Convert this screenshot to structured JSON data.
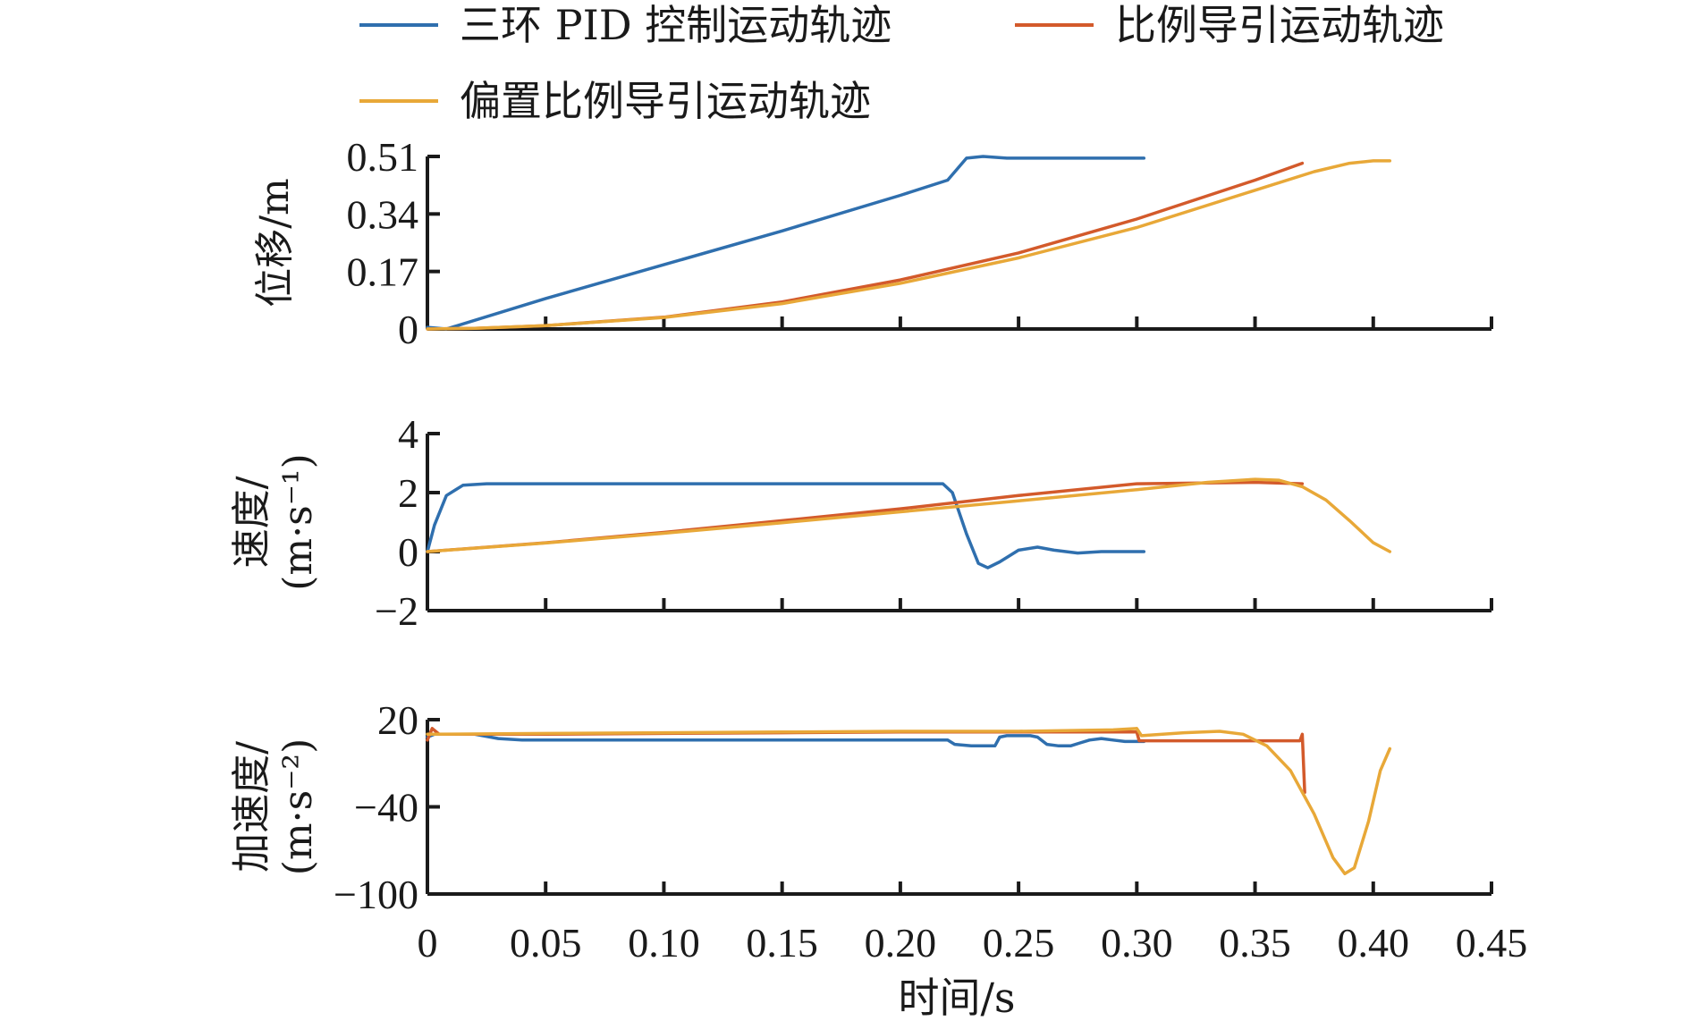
{
  "chart_data": {
    "type": "line",
    "legend": {
      "placement": "top",
      "entries": [
        {
          "name": "三环 PID 控制运动轨迹",
          "color": "#2f6fae"
        },
        {
          "name": "比例导引运动轨迹",
          "color": "#d35a2b"
        },
        {
          "name": "偏置比例导引运动轨迹",
          "color": "#e8a838"
        }
      ]
    },
    "xlabel": "时间/s",
    "xlim": [
      0,
      0.45
    ],
    "xticks": [
      0,
      0.05,
      0.1,
      0.15,
      0.2,
      0.25,
      0.3,
      0.35,
      0.4,
      0.45
    ],
    "xtick_labels": [
      "0",
      "0.05",
      "0.10",
      "0.15",
      "0.20",
      "0.25",
      "0.30",
      "0.35",
      "0.40",
      "0.45"
    ],
    "panels": [
      {
        "ylabel": [
          "位移/m"
        ],
        "ylim": [
          0,
          0.51
        ],
        "yticks": [
          0,
          0.17,
          0.34,
          0.51
        ],
        "ytick_labels": [
          "0",
          "0.17",
          "0.34",
          "0.51"
        ],
        "series": [
          {
            "name": "三环 PID 控制运动轨迹",
            "x": [
              0,
              0.008,
              0.05,
              0.1,
              0.15,
              0.2,
              0.22,
              0.228,
              0.235,
              0.245,
              0.26,
              0.28,
              0.303
            ],
            "y": [
              0.005,
              0,
              0.09,
              0.19,
              0.29,
              0.395,
              0.44,
              0.505,
              0.51,
              0.505,
              0.505,
              0.505,
              0.505
            ]
          },
          {
            "name": "比例导引运动轨迹",
            "x": [
              0,
              0.02,
              0.05,
              0.1,
              0.15,
              0.2,
              0.25,
              0.3,
              0.35,
              0.37
            ],
            "y": [
              0,
              0.002,
              0.01,
              0.035,
              0.08,
              0.145,
              0.225,
              0.325,
              0.44,
              0.49
            ]
          },
          {
            "name": "偏置比例导引运动轨迹",
            "x": [
              0,
              0.02,
              0.05,
              0.1,
              0.15,
              0.2,
              0.25,
              0.3,
              0.35,
              0.375,
              0.39,
              0.4,
              0.407
            ],
            "y": [
              0,
              0.002,
              0.01,
              0.034,
              0.075,
              0.135,
              0.21,
              0.3,
              0.41,
              0.465,
              0.49,
              0.497,
              0.497
            ]
          }
        ]
      },
      {
        "ylabel": [
          "速度/",
          "(m·s⁻¹)"
        ],
        "ylim": [
          -2,
          4
        ],
        "yticks": [
          -2,
          0,
          2,
          4
        ],
        "ytick_labels": [
          "−2",
          "0",
          "2",
          "4"
        ],
        "series": [
          {
            "name": "三环 PID 控制运动轨迹",
            "x": [
              0,
              0.003,
              0.008,
              0.015,
              0.025,
              0.04,
              0.1,
              0.2,
              0.218,
              0.222,
              0.228,
              0.233,
              0.237,
              0.242,
              0.25,
              0.258,
              0.265,
              0.275,
              0.285,
              0.303
            ],
            "y": [
              0,
              0.9,
              1.9,
              2.25,
              2.3,
              2.3,
              2.3,
              2.3,
              2.3,
              2.0,
              0.6,
              -0.4,
              -0.55,
              -0.35,
              0.05,
              0.15,
              0.05,
              -0.05,
              0,
              0
            ]
          },
          {
            "name": "比例导引运动轨迹",
            "x": [
              0,
              0.05,
              0.1,
              0.15,
              0.2,
              0.25,
              0.3,
              0.35,
              0.37
            ],
            "y": [
              0,
              0.3,
              0.65,
              1.05,
              1.45,
              1.9,
              2.3,
              2.35,
              2.3
            ]
          },
          {
            "name": "偏置比例导引运动轨迹",
            "x": [
              0,
              0.05,
              0.1,
              0.15,
              0.2,
              0.25,
              0.3,
              0.33,
              0.35,
              0.36,
              0.37,
              0.38,
              0.39,
              0.4,
              0.407
            ],
            "y": [
              0,
              0.29,
              0.62,
              0.98,
              1.35,
              1.72,
              2.1,
              2.35,
              2.45,
              2.42,
              2.2,
              1.75,
              1.05,
              0.3,
              0
            ]
          }
        ]
      },
      {
        "ylabel": [
          "加速度/",
          "(m·s⁻²)"
        ],
        "ylim": [
          -100,
          20
        ],
        "yticks": [
          -100,
          -40,
          20
        ],
        "ytick_labels": [
          "−100",
          "−40",
          "20"
        ],
        "series": [
          {
            "name": "三环 PID 控制运动轨迹",
            "x": [
              0,
              0.003,
              0.006,
              0.02,
              0.03,
              0.04,
              0.1,
              0.2,
              0.22,
              0.223,
              0.23,
              0.24,
              0.242,
              0.245,
              0.25,
              0.255,
              0.258,
              0.262,
              0.267,
              0.272,
              0.276,
              0.28,
              0.285,
              0.29,
              0.295,
              0.303
            ],
            "y": [
              8,
              10,
              10,
              10,
              7,
              6,
              6,
              6,
              6,
              3,
              2,
              2,
              8,
              9,
              9,
              9,
              8,
              3,
              2,
              2,
              4,
              6,
              7,
              6,
              5,
              5
            ]
          },
          {
            "name": "比例导引运动轨迹",
            "x": [
              0,
              0.002,
              0.005,
              0.05,
              0.1,
              0.15,
              0.2,
              0.25,
              0.3,
              0.301,
              0.33,
              0.36,
              0.369,
              0.37,
              0.371
            ],
            "y": [
              6,
              14,
              10,
              10,
              10.5,
              11,
              11.5,
              11.5,
              11.5,
              5.5,
              5.5,
              5.5,
              5.5,
              10,
              -30
            ]
          },
          {
            "name": "偏置比例导引运动轨迹",
            "x": [
              0,
              0.05,
              0.1,
              0.15,
              0.2,
              0.25,
              0.29,
              0.3,
              0.302,
              0.32,
              0.335,
              0.345,
              0.355,
              0.365,
              0.375,
              0.383,
              0.388,
              0.392,
              0.398,
              0.403,
              0.407
            ],
            "y": [
              10,
              10.5,
              11,
              11.5,
              12,
              12,
              13,
              14,
              9,
              11,
              12,
              10,
              2,
              -15,
              -45,
              -75,
              -86,
              -82,
              -50,
              -15,
              0
            ]
          }
        ]
      }
    ],
    "grid": false
  }
}
